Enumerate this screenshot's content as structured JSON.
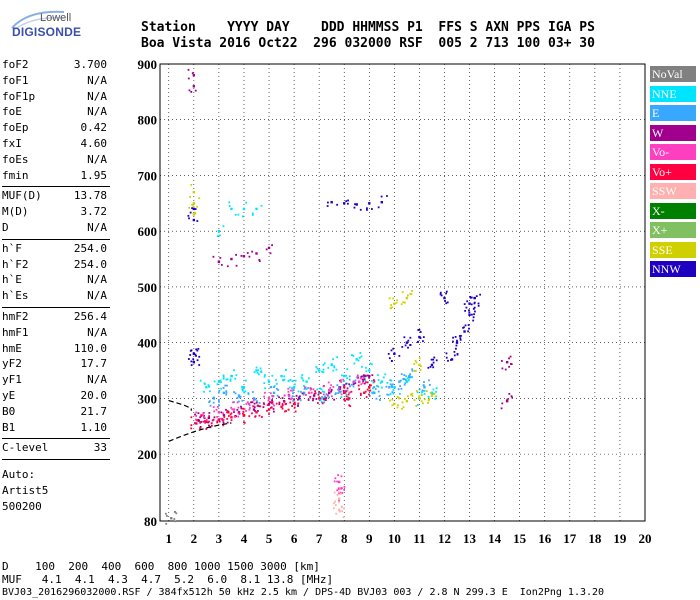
{
  "logo": {
    "brand_top": "Lowell",
    "brand_main": "DIGISONDE"
  },
  "header": {
    "row1": "Station    YYYY DAY    DDD HHMMSS P1  FFS S AXN PPS IGA PS",
    "row2": "Boa Vista 2016 Oct22  296 032000 RSF  005 2 713 100 03+ 30"
  },
  "params_group1": [
    {
      "name": "foF2",
      "value": "3.700"
    },
    {
      "name": "foF1",
      "value": "N/A"
    },
    {
      "name": "foF1p",
      "value": "N/A"
    },
    {
      "name": "foE",
      "value": "N/A"
    },
    {
      "name": "foEp",
      "value": "0.42"
    },
    {
      "name": "fxI",
      "value": "4.60"
    },
    {
      "name": "foEs",
      "value": "N/A"
    },
    {
      "name": "fmin",
      "value": "1.95"
    }
  ],
  "params_group2": [
    {
      "name": "MUF(D)",
      "value": "13.78"
    },
    {
      "name": "M(D)",
      "value": "3.72"
    },
    {
      "name": "D",
      "value": "N/A"
    }
  ],
  "params_group3": [
    {
      "name": "h`F",
      "value": "254.0"
    },
    {
      "name": "h`F2",
      "value": "254.0"
    },
    {
      "name": "h`E",
      "value": "N/A"
    },
    {
      "name": "h`Es",
      "value": "N/A"
    }
  ],
  "params_group4": [
    {
      "name": "hmF2",
      "value": "256.4"
    },
    {
      "name": "hmF1",
      "value": "N/A"
    },
    {
      "name": "hmE",
      "value": "110.0"
    },
    {
      "name": "yF2",
      "value": "17.7"
    },
    {
      "name": "yF1",
      "value": "N/A"
    },
    {
      "name": "yE",
      "value": "20.0"
    },
    {
      "name": "B0",
      "value": "21.7"
    },
    {
      "name": "B1",
      "value": "1.10"
    }
  ],
  "params_group5": [
    {
      "name": "C-level",
      "value": "33"
    }
  ],
  "auto_block": [
    "Auto:",
    "Artist5",
    "500200"
  ],
  "legend": [
    {
      "label": "NoVal",
      "bg": "#808080",
      "fg": "#ffffff"
    },
    {
      "label": "NNE",
      "bg": "#00e5ff",
      "fg": "#ffffff"
    },
    {
      "label": "E",
      "bg": "#38a8ff",
      "fg": "#ffffff"
    },
    {
      "label": "W",
      "bg": "#a0008c",
      "fg": "#ffffff"
    },
    {
      "label": "Vo-",
      "bg": "#ff3fbf",
      "fg": "#ffffff"
    },
    {
      "label": "Vo+",
      "bg": "#ff0040",
      "fg": "#ffffff"
    },
    {
      "label": "SSW",
      "bg": "#ffb0b0",
      "fg": "#ffffff"
    },
    {
      "label": "X-",
      "bg": "#008000",
      "fg": "#ffffff"
    },
    {
      "label": "X+",
      "bg": "#80c060",
      "fg": "#ffffff"
    },
    {
      "label": "SSE",
      "bg": "#d0d000",
      "fg": "#ffffff"
    },
    {
      "label": "NNW",
      "bg": "#2000c0",
      "fg": "#ffffff"
    }
  ],
  "footer": {
    "line1": "D    100  200  400  600  800 1000 1500 3000 [km]",
    "line2": "MUF   4.1  4.1  4.3  4.7  5.2  6.0  8.1 13.8 [MHz]",
    "line3": "BVJ03_2016296032000.RSF / 384fx512h 50 kHz 2.5 km / DPS-4D BVJ03 003 / 2.8 N 299.3 E  Ion2Png 1.3.20"
  },
  "chart_data": {
    "type": "scatter",
    "title": "",
    "xlabel": "",
    "ylabel": "",
    "xlim": [
      1,
      20
    ],
    "ylim": [
      80,
      900
    ],
    "x_ticks": [
      "1",
      "2",
      "3",
      "4",
      "5",
      "6",
      "7",
      "8",
      "9",
      "10",
      "11",
      "12",
      "13",
      "14",
      "15",
      "16",
      "17",
      "18",
      "19",
      "20"
    ],
    "y_ticks": [
      "80",
      "200",
      "300",
      "400",
      "500",
      "600",
      "700",
      "800",
      "900"
    ],
    "grid": true,
    "legend_position": "right",
    "series": [
      {
        "name": "NNE",
        "color": "#00e5ff",
        "points": [
          [
            2.5,
            320
          ],
          [
            3,
            330
          ],
          [
            3.5,
            340
          ],
          [
            4,
            320
          ],
          [
            4.5,
            350
          ],
          [
            5,
            330
          ],
          [
            5.5,
            340
          ],
          [
            6,
            320
          ],
          [
            6.5,
            330
          ],
          [
            7,
            350
          ],
          [
            7.5,
            360
          ],
          [
            8,
            340
          ],
          [
            8.5,
            370
          ],
          [
            9,
            350
          ],
          [
            9.5,
            330
          ],
          [
            10,
            320
          ],
          [
            10.5,
            330
          ],
          [
            11,
            300
          ],
          [
            11.5,
            310
          ],
          [
            3,
            600
          ],
          [
            3.5,
            640
          ],
          [
            4,
            640
          ],
          [
            4.5,
            640
          ],
          [
            7,
            310
          ],
          [
            8,
            310
          ],
          [
            9,
            320
          ]
        ]
      },
      {
        "name": "E",
        "color": "#38a8ff",
        "points": [
          [
            2.8,
            300
          ],
          [
            3.2,
            310
          ],
          [
            3.8,
            305
          ],
          [
            4.4,
            300
          ],
          [
            5.2,
            310
          ],
          [
            5.8,
            305
          ],
          [
            6.4,
            310
          ],
          [
            7.2,
            300
          ],
          [
            7.8,
            320
          ],
          [
            8.4,
            330
          ],
          [
            9.2,
            310
          ],
          [
            9.8,
            320
          ],
          [
            10.2,
            330
          ],
          [
            10.6,
            340
          ],
          [
            11.2,
            320
          ]
        ]
      },
      {
        "name": "W",
        "color": "#a0008c",
        "points": [
          [
            2,
            880
          ],
          [
            2,
            860
          ],
          [
            3,
            545
          ],
          [
            3.5,
            550
          ],
          [
            4,
            555
          ],
          [
            4.5,
            560
          ],
          [
            5,
            570
          ],
          [
            2.2,
            260
          ],
          [
            2.6,
            265
          ],
          [
            3.2,
            270
          ],
          [
            3.8,
            275
          ],
          [
            4.4,
            280
          ],
          [
            5,
            290
          ],
          [
            5.6,
            295
          ],
          [
            6.2,
            300
          ],
          [
            6.8,
            305
          ],
          [
            7.4,
            310
          ],
          [
            8,
            320
          ],
          [
            8.6,
            330
          ],
          [
            9,
            340
          ],
          [
            14.5,
            365
          ],
          [
            14.5,
            295
          ]
        ]
      },
      {
        "name": "Vo-",
        "color": "#ff3fbf",
        "points": [
          [
            2.3,
            270
          ],
          [
            3,
            275
          ],
          [
            3.6,
            280
          ],
          [
            4.2,
            290
          ],
          [
            5,
            300
          ],
          [
            5.8,
            305
          ],
          [
            6.6,
            310
          ],
          [
            7.4,
            315
          ],
          [
            8,
            320
          ],
          [
            8.6,
            330
          ],
          [
            7.8,
            130
          ],
          [
            7.8,
            150
          ]
        ]
      },
      {
        "name": "Vo+",
        "color": "#ff0040",
        "points": [
          [
            2.1,
            255
          ],
          [
            2.5,
            258
          ],
          [
            3,
            262
          ],
          [
            3.5,
            266
          ],
          [
            4,
            270
          ],
          [
            4.5,
            275
          ],
          [
            5,
            280
          ],
          [
            5.5,
            285
          ],
          [
            6,
            290
          ],
          [
            7,
            300
          ],
          [
            8,
            310
          ],
          [
            9,
            320
          ],
          [
            8.2,
            300
          ],
          [
            8.8,
            310
          ]
        ]
      },
      {
        "name": "SSW",
        "color": "#ffb0b0",
        "points": [
          [
            7.8,
            100
          ],
          [
            7.8,
            120
          ]
        ]
      },
      {
        "name": "SSE",
        "color": "#d0d000",
        "points": [
          [
            2,
            650
          ],
          [
            2,
            670
          ],
          [
            2,
            630
          ],
          [
            10,
            290
          ],
          [
            10.5,
            295
          ],
          [
            11,
            300
          ],
          [
            11.5,
            305
          ],
          [
            11,
            360
          ],
          [
            10,
            470
          ],
          [
            10.5,
            480
          ]
        ]
      },
      {
        "name": "NNW",
        "color": "#2000c0",
        "points": [
          [
            8,
            650
          ],
          [
            8.5,
            648
          ],
          [
            9,
            650
          ],
          [
            9.5,
            652
          ],
          [
            7.5,
            652
          ],
          [
            2,
            640
          ],
          [
            2,
            620
          ],
          [
            2,
            380
          ],
          [
            2,
            365
          ],
          [
            10,
            380
          ],
          [
            10.5,
            400
          ],
          [
            11,
            410
          ],
          [
            11.5,
            360
          ],
          [
            12,
            480
          ],
          [
            12.5,
            400
          ],
          [
            12.8,
            420
          ],
          [
            13,
            450
          ],
          [
            13,
            470
          ],
          [
            13.2,
            480
          ],
          [
            12.3,
            370
          ]
        ]
      },
      {
        "name": "NoVal",
        "color": "#808080",
        "points": [
          [
            1.1,
            85
          ]
        ]
      }
    ],
    "dashed_curve": [
      [
        1,
        296
      ],
      [
        1.3,
        292
      ],
      [
        1.6,
        288
      ],
      [
        1.9,
        282
      ],
      [
        1.9,
        278
      ]
    ],
    "dashed_curve_lower": [
      [
        1,
        223
      ],
      [
        1.5,
        232
      ],
      [
        2,
        240
      ],
      [
        2.5,
        247
      ],
      [
        3,
        252
      ],
      [
        3.5,
        256
      ]
    ]
  }
}
